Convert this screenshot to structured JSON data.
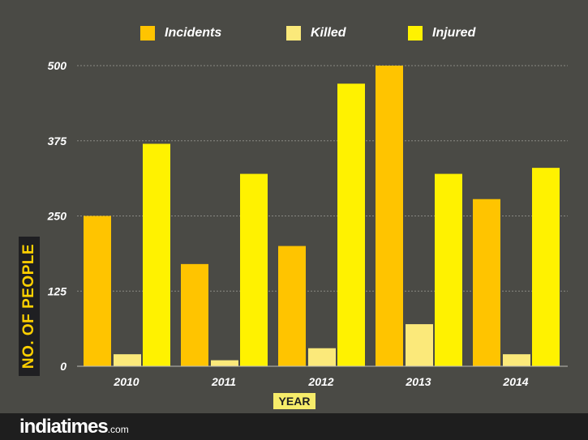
{
  "chart_data": {
    "type": "bar",
    "categories": [
      "2010",
      "2011",
      "2012",
      "2013",
      "2014"
    ],
    "series": [
      {
        "name": "Incidents",
        "values": [
          250,
          170,
          200,
          500,
          278
        ],
        "color": "#ffc400"
      },
      {
        "name": "Killed",
        "values": [
          20,
          10,
          30,
          70,
          20
        ],
        "color": "#fbe97a"
      },
      {
        "name": "Injured",
        "values": [
          370,
          320,
          470,
          320,
          330
        ],
        "color": "#fff200"
      }
    ],
    "title": "",
    "xlabel": "YEAR",
    "ylabel": "NO. OF PEOPLE",
    "ylim": [
      0,
      500
    ],
    "yticks": [
      0,
      125,
      250,
      375,
      500
    ],
    "grid": true,
    "legend_position": "top"
  },
  "footer": {
    "brand_main": "indiatimes",
    "brand_domain": ".com"
  }
}
